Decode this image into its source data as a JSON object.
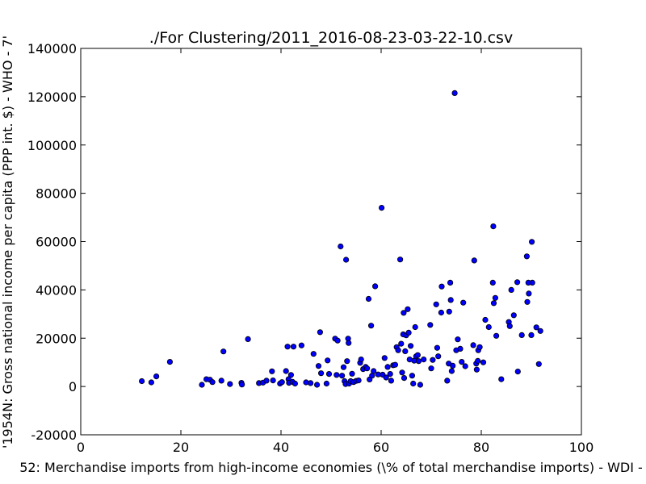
{
  "chart_data": {
    "type": "scatter",
    "title": "./For Clustering/2011_2016-08-23-03-22-10.csv",
    "xlabel": "52: Merchandise imports from high-income economies  (\\% of total merchandise imports) - WDI -",
    "ylabel": "'1954N: Gross national income per capita (PPP int. $) - WHO - 7'",
    "xlim": [
      0,
      100
    ],
    "ylim": [
      -20000,
      140000
    ],
    "xticks": [
      0,
      20,
      40,
      60,
      80,
      100
    ],
    "yticks": [
      -20000,
      0,
      20000,
      40000,
      60000,
      80000,
      100000,
      120000,
      140000
    ],
    "grid": false,
    "marker_color": "#0000ff",
    "series": [
      {
        "points": [
          [
            12.2,
            2200
          ],
          [
            14.1,
            1700
          ],
          [
            15.1,
            4200
          ],
          [
            17.8,
            10200
          ],
          [
            24.2,
            700
          ],
          [
            25.1,
            3000
          ],
          [
            25.8,
            2800
          ],
          [
            26.3,
            1800
          ],
          [
            28.1,
            2400
          ],
          [
            28.5,
            14500
          ],
          [
            29.8,
            1000
          ],
          [
            32.1,
            1500
          ],
          [
            32.2,
            800
          ],
          [
            33.4,
            19600
          ],
          [
            35.6,
            1400
          ],
          [
            36.4,
            1600
          ],
          [
            37.1,
            2400
          ],
          [
            38.2,
            6300
          ],
          [
            38.4,
            2500
          ],
          [
            39.8,
            1200
          ],
          [
            40.2,
            1800
          ],
          [
            41.0,
            6400
          ],
          [
            41.3,
            16500
          ],
          [
            41.5,
            3000
          ],
          [
            41.6,
            1500
          ],
          [
            42.0,
            4800
          ],
          [
            42.3,
            1900
          ],
          [
            42.5,
            16500
          ],
          [
            42.8,
            1200
          ],
          [
            44.1,
            17000
          ],
          [
            45.0,
            1700
          ],
          [
            45.9,
            1400
          ],
          [
            46.5,
            13500
          ],
          [
            47.2,
            700
          ],
          [
            47.5,
            8500
          ],
          [
            47.8,
            22500
          ],
          [
            48.0,
            5500
          ],
          [
            49.1,
            1200
          ],
          [
            49.3,
            10800
          ],
          [
            49.6,
            5200
          ],
          [
            50.8,
            19800
          ],
          [
            51.1,
            4800
          ],
          [
            51.3,
            19000
          ],
          [
            51.9,
            58000
          ],
          [
            52.2,
            4500
          ],
          [
            52.5,
            8000
          ],
          [
            52.7,
            2200
          ],
          [
            52.9,
            1000
          ],
          [
            53.0,
            52500
          ],
          [
            53.2,
            10500
          ],
          [
            53.4,
            19800
          ],
          [
            53.5,
            18000
          ],
          [
            53.6,
            1200
          ],
          [
            53.9,
            2200
          ],
          [
            54.2,
            5300
          ],
          [
            54.5,
            1800
          ],
          [
            55.0,
            2300
          ],
          [
            55.5,
            2500
          ],
          [
            55.8,
            9800
          ],
          [
            56.0,
            11200
          ],
          [
            56.4,
            7200
          ],
          [
            56.9,
            8100
          ],
          [
            57.2,
            7500
          ],
          [
            57.5,
            36300
          ],
          [
            57.7,
            2900
          ],
          [
            58.0,
            25200
          ],
          [
            58.2,
            4500
          ],
          [
            58.5,
            6400
          ],
          [
            58.8,
            41500
          ],
          [
            59.4,
            5000
          ],
          [
            60.1,
            74000
          ],
          [
            60.3,
            4900
          ],
          [
            60.7,
            11800
          ],
          [
            61.0,
            3700
          ],
          [
            61.3,
            8100
          ],
          [
            61.8,
            5200
          ],
          [
            62.0,
            2400
          ],
          [
            62.4,
            8800
          ],
          [
            62.8,
            9000
          ],
          [
            63.1,
            16300
          ],
          [
            63.4,
            15000
          ],
          [
            63.8,
            52600
          ],
          [
            64.0,
            17700
          ],
          [
            64.2,
            5800
          ],
          [
            64.4,
            21600
          ],
          [
            64.5,
            30500
          ],
          [
            64.6,
            3500
          ],
          [
            64.8,
            14600
          ],
          [
            65.0,
            21200
          ],
          [
            65.3,
            32000
          ],
          [
            65.5,
            22300
          ],
          [
            65.7,
            11200
          ],
          [
            65.9,
            16800
          ],
          [
            66.2,
            4500
          ],
          [
            66.4,
            1200
          ],
          [
            66.6,
            10700
          ],
          [
            66.8,
            24600
          ],
          [
            67.0,
            12500
          ],
          [
            67.3,
            13000
          ],
          [
            67.5,
            10500
          ],
          [
            67.8,
            700
          ],
          [
            68.5,
            11200
          ],
          [
            69.8,
            25500
          ],
          [
            70.0,
            7500
          ],
          [
            70.3,
            11000
          ],
          [
            71.0,
            34000
          ],
          [
            71.2,
            16000
          ],
          [
            71.4,
            12500
          ],
          [
            72.0,
            30600
          ],
          [
            72.1,
            41400
          ],
          [
            73.2,
            2400
          ],
          [
            73.5,
            9500
          ],
          [
            73.6,
            31000
          ],
          [
            73.8,
            43000
          ],
          [
            73.9,
            35800
          ],
          [
            74.1,
            6400
          ],
          [
            74.3,
            8600
          ],
          [
            74.7,
            121500
          ],
          [
            75.0,
            15000
          ],
          [
            75.3,
            19500
          ],
          [
            75.8,
            15600
          ],
          [
            76.1,
            10200
          ],
          [
            76.4,
            34700
          ],
          [
            76.8,
            8400
          ],
          [
            78.4,
            17100
          ],
          [
            78.6,
            52200
          ],
          [
            79.0,
            9500
          ],
          [
            79.1,
            7000
          ],
          [
            79.3,
            10600
          ],
          [
            79.4,
            15000
          ],
          [
            79.7,
            16300
          ],
          [
            80.4,
            10000
          ],
          [
            80.8,
            27600
          ],
          [
            81.5,
            24600
          ],
          [
            82.3,
            43000
          ],
          [
            82.4,
            66300
          ],
          [
            82.5,
            34500
          ],
          [
            82.8,
            36700
          ],
          [
            83.0,
            21000
          ],
          [
            84.0,
            3000
          ],
          [
            85.5,
            26700
          ],
          [
            85.7,
            25000
          ],
          [
            86.0,
            40000
          ],
          [
            86.5,
            29500
          ],
          [
            87.2,
            43200
          ],
          [
            87.3,
            6200
          ],
          [
            88.1,
            21300
          ],
          [
            89.1,
            53900
          ],
          [
            89.2,
            35000
          ],
          [
            89.4,
            43000
          ],
          [
            89.5,
            38500
          ],
          [
            90.0,
            21300
          ],
          [
            90.1,
            59900
          ],
          [
            90.2,
            43000
          ],
          [
            91.0,
            24500
          ],
          [
            91.5,
            9300
          ],
          [
            91.8,
            23000
          ]
        ]
      }
    ]
  }
}
